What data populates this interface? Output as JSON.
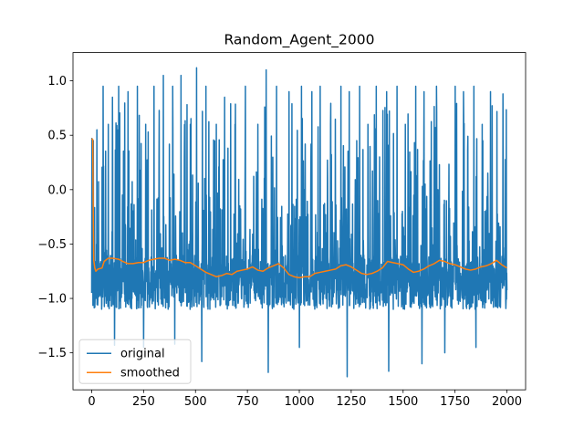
{
  "chart_data": {
    "type": "line",
    "title": "Random_Agent_2000",
    "xlabel": "",
    "ylabel": "",
    "xlim": [
      -90,
      2090
    ],
    "ylim": [
      -1.84,
      1.26
    ],
    "x_ticks": [
      0,
      250,
      500,
      750,
      1000,
      1250,
      1500,
      1750,
      2000
    ],
    "x_tick_labels": [
      "0",
      "250",
      "500",
      "750",
      "1000",
      "1250",
      "1500",
      "1750",
      "2000"
    ],
    "y_ticks": [
      -1.5,
      -1.0,
      -0.5,
      0.0,
      0.5,
      1.0
    ],
    "y_tick_labels": [
      "−1.5",
      "−1.0",
      "−0.5",
      "0.0",
      "0.5",
      "1.0"
    ],
    "grid": false,
    "legend_position": "bottom-left",
    "series": [
      {
        "name": "original",
        "color": "#1f77b4",
        "x_range": [
          0,
          2000
        ],
        "n_points": 2000,
        "baseline_range": [
          -1.1,
          -0.6
        ],
        "spikes": [
          {
            "x": 1,
            "y": 0.47
          },
          {
            "x": 8,
            "y": 0.45
          },
          {
            "x": 25,
            "y": 0.55
          },
          {
            "x": 55,
            "y": 0.95
          },
          {
            "x": 80,
            "y": 0.6
          },
          {
            "x": 100,
            "y": 0.85
          },
          {
            "x": 130,
            "y": 0.95
          },
          {
            "x": 175,
            "y": 0.9
          },
          {
            "x": 220,
            "y": 0.95
          },
          {
            "x": 260,
            "y": 0.6
          },
          {
            "x": 300,
            "y": 0.95
          },
          {
            "x": 345,
            "y": 1.05
          },
          {
            "x": 390,
            "y": 0.95
          },
          {
            "x": 430,
            "y": 1.05
          },
          {
            "x": 475,
            "y": 0.6
          },
          {
            "x": 505,
            "y": 1.12
          },
          {
            "x": 550,
            "y": 0.95
          },
          {
            "x": 600,
            "y": 0.6
          },
          {
            "x": 640,
            "y": 0.85
          },
          {
            "x": 690,
            "y": 0.6
          },
          {
            "x": 740,
            "y": 0.95
          },
          {
            "x": 800,
            "y": 0.6
          },
          {
            "x": 840,
            "y": 1.1
          },
          {
            "x": 890,
            "y": 0.95
          },
          {
            "x": 950,
            "y": 0.9
          },
          {
            "x": 1010,
            "y": 0.95
          },
          {
            "x": 1060,
            "y": 0.9
          },
          {
            "x": 1100,
            "y": 0.95
          },
          {
            "x": 1150,
            "y": 0.6
          },
          {
            "x": 1200,
            "y": 0.95
          },
          {
            "x": 1240,
            "y": 0.9
          },
          {
            "x": 1290,
            "y": 0.95
          },
          {
            "x": 1330,
            "y": 0.6
          },
          {
            "x": 1370,
            "y": 0.95
          },
          {
            "x": 1420,
            "y": 0.9
          },
          {
            "x": 1470,
            "y": 0.95
          },
          {
            "x": 1510,
            "y": 0.6
          },
          {
            "x": 1560,
            "y": 0.95
          },
          {
            "x": 1600,
            "y": 0.9
          },
          {
            "x": 1660,
            "y": 0.95
          },
          {
            "x": 1700,
            "y": 0.6
          },
          {
            "x": 1750,
            "y": 0.95
          },
          {
            "x": 1790,
            "y": 0.9
          },
          {
            "x": 1840,
            "y": 0.95
          },
          {
            "x": 1880,
            "y": 0.6
          },
          {
            "x": 1920,
            "y": 0.9
          },
          {
            "x": 1980,
            "y": 0.88
          }
        ],
        "dips": [
          {
            "x": 110,
            "y": -1.43
          },
          {
            "x": 250,
            "y": -1.45
          },
          {
            "x": 400,
            "y": -1.42
          },
          {
            "x": 530,
            "y": -1.58
          },
          {
            "x": 850,
            "y": -1.68
          },
          {
            "x": 1000,
            "y": -1.45
          },
          {
            "x": 1230,
            "y": -1.72
          },
          {
            "x": 1430,
            "y": -1.67
          },
          {
            "x": 1590,
            "y": -1.6
          },
          {
            "x": 1700,
            "y": -1.5
          },
          {
            "x": 1850,
            "y": -1.45
          }
        ]
      },
      {
        "name": "smoothed",
        "color": "#ff7f0e",
        "points": [
          [
            0,
            0.47
          ],
          [
            5,
            0.46
          ],
          [
            8,
            -0.3
          ],
          [
            10,
            -0.65
          ],
          [
            15,
            -0.72
          ],
          [
            20,
            -0.75
          ],
          [
            30,
            -0.73
          ],
          [
            50,
            -0.72
          ],
          [
            60,
            -0.66
          ],
          [
            80,
            -0.63
          ],
          [
            100,
            -0.63
          ],
          [
            130,
            -0.64
          ],
          [
            150,
            -0.66
          ],
          [
            175,
            -0.68
          ],
          [
            200,
            -0.68
          ],
          [
            225,
            -0.67
          ],
          [
            250,
            -0.67
          ],
          [
            275,
            -0.65
          ],
          [
            300,
            -0.64
          ],
          [
            325,
            -0.63
          ],
          [
            350,
            -0.63
          ],
          [
            375,
            -0.65
          ],
          [
            400,
            -0.64
          ],
          [
            425,
            -0.65
          ],
          [
            450,
            -0.67
          ],
          [
            475,
            -0.67
          ],
          [
            500,
            -0.7
          ],
          [
            525,
            -0.73
          ],
          [
            550,
            -0.76
          ],
          [
            575,
            -0.78
          ],
          [
            600,
            -0.8
          ],
          [
            625,
            -0.79
          ],
          [
            650,
            -0.77
          ],
          [
            675,
            -0.78
          ],
          [
            700,
            -0.75
          ],
          [
            725,
            -0.74
          ],
          [
            750,
            -0.73
          ],
          [
            775,
            -0.71
          ],
          [
            800,
            -0.74
          ],
          [
            825,
            -0.75
          ],
          [
            850,
            -0.72
          ],
          [
            875,
            -0.7
          ],
          [
            900,
            -0.68
          ],
          [
            925,
            -0.72
          ],
          [
            950,
            -0.78
          ],
          [
            975,
            -0.8
          ],
          [
            1000,
            -0.81
          ],
          [
            1025,
            -0.8
          ],
          [
            1050,
            -0.8
          ],
          [
            1075,
            -0.77
          ],
          [
            1100,
            -0.76
          ],
          [
            1125,
            -0.75
          ],
          [
            1150,
            -0.74
          ],
          [
            1175,
            -0.73
          ],
          [
            1200,
            -0.7
          ],
          [
            1225,
            -0.69
          ],
          [
            1250,
            -0.71
          ],
          [
            1275,
            -0.74
          ],
          [
            1300,
            -0.77
          ],
          [
            1325,
            -0.78
          ],
          [
            1350,
            -0.77
          ],
          [
            1375,
            -0.75
          ],
          [
            1400,
            -0.72
          ],
          [
            1425,
            -0.66
          ],
          [
            1450,
            -0.67
          ],
          [
            1475,
            -0.68
          ],
          [
            1500,
            -0.69
          ],
          [
            1525,
            -0.73
          ],
          [
            1550,
            -0.76
          ],
          [
            1575,
            -0.75
          ],
          [
            1600,
            -0.73
          ],
          [
            1625,
            -0.7
          ],
          [
            1650,
            -0.68
          ],
          [
            1675,
            -0.65
          ],
          [
            1700,
            -0.66
          ],
          [
            1725,
            -0.68
          ],
          [
            1750,
            -0.69
          ],
          [
            1775,
            -0.71
          ],
          [
            1800,
            -0.73
          ],
          [
            1825,
            -0.74
          ],
          [
            1850,
            -0.73
          ],
          [
            1875,
            -0.71
          ],
          [
            1900,
            -0.7
          ],
          [
            1925,
            -0.68
          ],
          [
            1950,
            -0.65
          ],
          [
            1975,
            -0.69
          ],
          [
            2000,
            -0.72
          ]
        ]
      }
    ]
  }
}
